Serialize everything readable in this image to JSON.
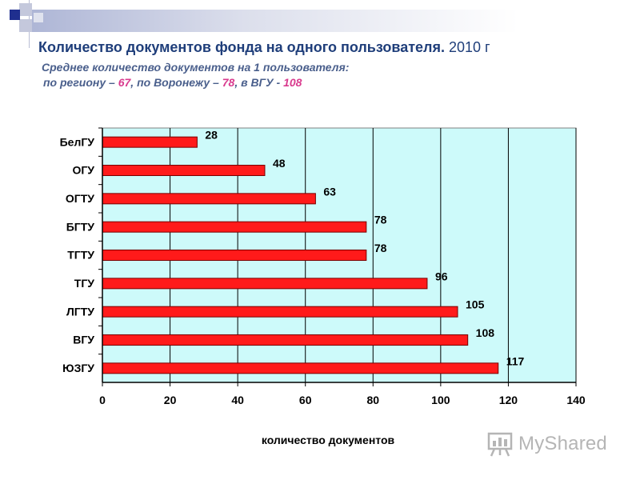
{
  "header": {
    "title": "Количество документов фонда на одного пользователя.",
    "year": "2010 г",
    "subtitle": "Среднее количество документов на 1 пользователя:",
    "line": {
      "p1": "по региону – ",
      "v1": "67",
      "p2": ", по Воронежу – ",
      "v2": "78",
      "p3": ", в ВГУ - ",
      "v3": "108"
    }
  },
  "chart_data": {
    "type": "bar",
    "orientation": "horizontal",
    "categories": [
      "БелГУ",
      "ОГУ",
      "ОГТУ",
      "БГТУ",
      "ТГТУ",
      "ТГУ",
      "ЛГТУ",
      "ВГУ",
      "ЮЗГУ"
    ],
    "values": [
      28,
      48,
      63,
      78,
      78,
      96,
      105,
      108,
      117
    ],
    "xlabel": "количество документов",
    "xlim": [
      0,
      140
    ],
    "xticks": [
      0,
      20,
      40,
      60,
      80,
      100,
      120,
      140
    ],
    "grid": "vertical",
    "colors": {
      "bar": "#ff1a1a",
      "bar_border": "#7a0000",
      "plot_bg": "#cdfafa",
      "grid": "#000000"
    }
  },
  "logo": {
    "text": "MyShared",
    "icon": "presentation-board-icon"
  }
}
